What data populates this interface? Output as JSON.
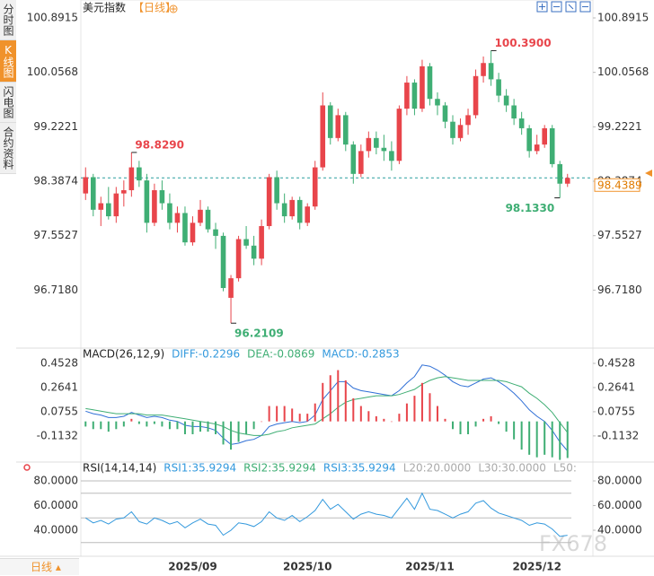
{
  "ui": {
    "tabs": [
      "分时图",
      "K线图",
      "闪电图",
      "合约资料"
    ],
    "period_button": "日线",
    "watermark": "FX678"
  },
  "chart_data": [
    {
      "type": "candlestick",
      "title": "美元指数",
      "period": "【日线】",
      "categories": [
        null,
        null,
        null,
        null,
        null,
        null,
        null,
        null,
        null,
        null,
        null,
        null,
        null,
        null,
        "2025/09",
        null,
        null,
        null,
        null,
        null,
        null,
        null,
        null,
        null,
        null,
        null,
        null,
        null,
        null,
        "2025/10",
        null,
        null,
        null,
        null,
        null,
        null,
        null,
        null,
        null,
        null,
        null,
        null,
        null,
        null,
        null,
        "2025/11",
        null,
        null,
        null,
        null,
        null,
        null,
        null,
        null,
        null,
        null,
        null,
        null,
        null,
        "2025/12",
        null,
        null,
        null,
        null
      ],
      "open": [
        98.2,
        98.45,
        97.95,
        98.05,
        97.85,
        98.2,
        98.25,
        98.6,
        98.4,
        97.75,
        98.25,
        98.05,
        97.75,
        97.9,
        97.45,
        97.75,
        97.95,
        97.65,
        97.55,
        96.6,
        96.9,
        97.5,
        97.4,
        97.2,
        97.7,
        98.45,
        98.05,
        97.85,
        98.1,
        97.75,
        98.0,
        98.6,
        99.55,
        99.05,
        99.4,
        98.95,
        98.5,
        98.85,
        99.05,
        98.9,
        98.85,
        98.7,
        99.5,
        99.9,
        99.5,
        100.15,
        99.65,
        99.55,
        99.3,
        99.05,
        99.25,
        99.4,
        100.0,
        100.2,
        99.95,
        99.7,
        99.55,
        99.35,
        99.2,
        98.85,
        98.95,
        99.2,
        98.65,
        98.35
      ],
      "high": [
        98.6,
        98.5,
        98.15,
        98.3,
        98.3,
        98.4,
        98.829,
        98.7,
        98.5,
        98.35,
        98.4,
        98.2,
        98.0,
        98.0,
        97.85,
        98.1,
        98.0,
        97.75,
        97.6,
        96.95,
        97.55,
        97.7,
        97.55,
        97.8,
        98.5,
        98.55,
        98.2,
        98.15,
        98.15,
        98.05,
        98.7,
        99.75,
        99.6,
        99.5,
        99.45,
        99.0,
        98.95,
        99.15,
        99.15,
        99.1,
        99.0,
        99.55,
        100.0,
        99.95,
        100.25,
        100.2,
        99.75,
        99.6,
        99.4,
        99.35,
        99.5,
        100.1,
        100.3,
        100.39,
        100.05,
        99.8,
        99.65,
        99.45,
        99.25,
        99.1,
        99.25,
        99.25,
        98.7,
        98.5
      ],
      "low": [
        98.1,
        97.85,
        97.7,
        97.8,
        97.75,
        98.0,
        98.15,
        98.3,
        97.6,
        97.7,
        97.95,
        97.65,
        97.6,
        97.4,
        97.4,
        97.7,
        97.6,
        97.35,
        96.7,
        96.2109,
        96.85,
        97.35,
        97.1,
        97.1,
        97.65,
        97.95,
        97.75,
        97.8,
        97.65,
        97.7,
        97.95,
        98.55,
        98.95,
        99.0,
        98.85,
        98.35,
        98.45,
        98.75,
        98.8,
        98.7,
        98.55,
        98.65,
        99.4,
        99.4,
        99.45,
        99.55,
        99.4,
        99.2,
        98.95,
        99.0,
        99.1,
        99.35,
        99.9,
        99.85,
        99.6,
        99.45,
        99.25,
        99.1,
        98.75,
        98.8,
        98.9,
        98.6,
        98.133,
        98.3
      ],
      "close": [
        98.45,
        97.95,
        98.05,
        97.85,
        98.2,
        98.25,
        98.6,
        98.4,
        97.75,
        98.25,
        98.05,
        97.75,
        97.9,
        97.45,
        97.75,
        97.95,
        97.65,
        97.55,
        96.75,
        96.9,
        97.5,
        97.4,
        97.2,
        97.7,
        98.45,
        98.05,
        97.85,
        98.1,
        97.75,
        98.0,
        98.6,
        99.55,
        99.05,
        99.4,
        98.95,
        98.5,
        98.85,
        99.05,
        98.9,
        98.85,
        98.7,
        99.5,
        99.9,
        99.5,
        100.15,
        99.65,
        99.55,
        99.3,
        99.05,
        99.25,
        99.4,
        100.0,
        100.2,
        99.95,
        99.7,
        99.55,
        99.35,
        99.2,
        98.85,
        98.95,
        99.2,
        98.65,
        98.35,
        98.4389
      ],
      "up_color": "#e8454b",
      "down_color": "#3fae74",
      "ylim": [
        95.87,
        100.96
      ],
      "yticks": [
        100.8915,
        100.0568,
        99.2221,
        98.3874,
        97.5527,
        {
          "value": 96.718,
          "label": "96.7180"
        }
      ],
      "annotations": [
        {
          "value": 98.829,
          "label": "98.8290"
        },
        {
          "value": 100.39,
          "label": "100.3900"
        },
        {
          "value": 96.2109,
          "label": "96.2109"
        },
        {
          "value": 98.133,
          "label": "98.1330"
        }
      ],
      "last_price": 98.4389,
      "last_price_color": "#2a9d9d"
    },
    {
      "type": "macd",
      "label": "MACD(26,12,9)",
      "series": [
        {
          "legend": "DIFF:-0.2296",
          "color": "#2f6fd6",
          "legend_color": "#3399dd",
          "kind": "line",
          "values": [
            0.08,
            0.06,
            0.05,
            0.03,
            0.03,
            0.04,
            0.07,
            0.05,
            0.03,
            0.04,
            0.03,
            0.01,
            0.0,
            -0.03,
            -0.04,
            -0.04,
            -0.05,
            -0.07,
            -0.13,
            -0.18,
            -0.17,
            -0.15,
            -0.14,
            -0.11,
            -0.04,
            -0.02,
            -0.01,
            0.0,
            -0.01,
            0.0,
            0.05,
            0.17,
            0.24,
            0.31,
            0.31,
            0.26,
            0.24,
            0.23,
            0.22,
            0.21,
            0.2,
            0.24,
            0.3,
            0.35,
            0.44,
            0.43,
            0.4,
            0.36,
            0.31,
            0.28,
            0.27,
            0.3,
            0.33,
            0.34,
            0.31,
            0.27,
            0.22,
            0.16,
            0.09,
            0.04,
            0.0,
            -0.07,
            -0.16,
            -0.2296
          ]
        },
        {
          "legend": "DEA:-0.0869",
          "color": "#3fae74",
          "legend_color": "#3fae74",
          "kind": "line",
          "values": [
            0.1,
            0.09,
            0.08,
            0.07,
            0.06,
            0.06,
            0.06,
            0.06,
            0.05,
            0.05,
            0.05,
            0.04,
            0.03,
            0.02,
            0.01,
            0.0,
            -0.01,
            -0.02,
            -0.04,
            -0.07,
            -0.09,
            -0.1,
            -0.11,
            -0.11,
            -0.1,
            -0.08,
            -0.07,
            -0.05,
            -0.04,
            -0.03,
            -0.02,
            0.02,
            0.06,
            0.11,
            0.15,
            0.17,
            0.18,
            0.19,
            0.2,
            0.2,
            0.2,
            0.21,
            0.23,
            0.25,
            0.29,
            0.32,
            0.34,
            0.35,
            0.34,
            0.33,
            0.32,
            0.32,
            0.32,
            0.32,
            0.32,
            0.31,
            0.29,
            0.27,
            0.22,
            0.18,
            0.13,
            0.07,
            -0.01,
            -0.0869
          ]
        },
        {
          "legend": "MACD:-0.2853",
          "color": "#e8454b",
          "down_color": "#3fae74",
          "legend_color": "#3399dd",
          "kind": "bar",
          "values": [
            -0.04,
            -0.06,
            -0.06,
            -0.08,
            -0.06,
            -0.04,
            0.02,
            -0.02,
            -0.04,
            -0.02,
            -0.04,
            -0.06,
            -0.06,
            -0.1,
            -0.1,
            -0.08,
            -0.08,
            -0.1,
            -0.18,
            -0.22,
            -0.16,
            -0.1,
            -0.06,
            0.0,
            0.12,
            0.12,
            0.12,
            0.1,
            0.06,
            0.06,
            0.14,
            0.3,
            0.36,
            0.4,
            0.32,
            0.18,
            0.12,
            0.08,
            0.04,
            0.02,
            0.0,
            0.06,
            0.14,
            0.2,
            0.3,
            0.22,
            0.12,
            0.02,
            -0.06,
            -0.1,
            -0.1,
            -0.04,
            0.02,
            0.04,
            -0.02,
            -0.08,
            -0.14,
            -0.22,
            -0.26,
            -0.28,
            -0.26,
            -0.28,
            -0.3,
            -0.2853
          ]
        }
      ],
      "ylim": [
        -0.31,
        0.5437
      ],
      "yticks": [
        0.4528,
        0.2641,
        0.0755,
        -0.1132
      ]
    },
    {
      "type": "rsi",
      "label": "RSI(14,14,14)",
      "series": [
        {
          "legend": "RSI1:35.9294",
          "color": "#3399dd",
          "values": [
            50,
            46,
            48,
            45,
            49,
            50,
            55,
            47,
            45,
            50,
            48,
            45,
            47,
            42,
            46,
            49,
            45,
            44,
            36,
            40,
            46,
            45,
            43,
            47,
            55,
            50,
            48,
            52,
            47,
            51,
            56,
            65,
            57,
            61,
            55,
            49,
            53,
            55,
            53,
            52,
            50,
            58,
            66,
            57,
            70,
            57,
            56,
            53,
            50,
            53,
            55,
            62,
            64,
            58,
            54,
            52,
            50,
            48,
            44,
            46,
            45,
            41,
            35,
            35.9294
          ]
        }
      ],
      "legend_extra": [
        {
          "text": "RSI2:35.9294",
          "color": "#3fae74"
        },
        {
          "text": "RSI3:35.9294",
          "color": "#3399dd"
        },
        {
          "text": "L20:20.0000",
          "color": "#aaaaaa"
        },
        {
          "text": "L30:30.0000",
          "color": "#aaaaaa"
        },
        {
          "text": "L50:",
          "color": "#aaaaaa"
        }
      ],
      "levels": [
        80,
        70,
        50,
        30
      ],
      "ylim": [
        24.73,
        93.09
      ],
      "yticks": [
        {
          "value": 80,
          "label": "80.0000"
        },
        {
          "value": 60,
          "label": "60.0000"
        },
        {
          "value": 40,
          "label": "40.0000"
        }
      ]
    }
  ]
}
